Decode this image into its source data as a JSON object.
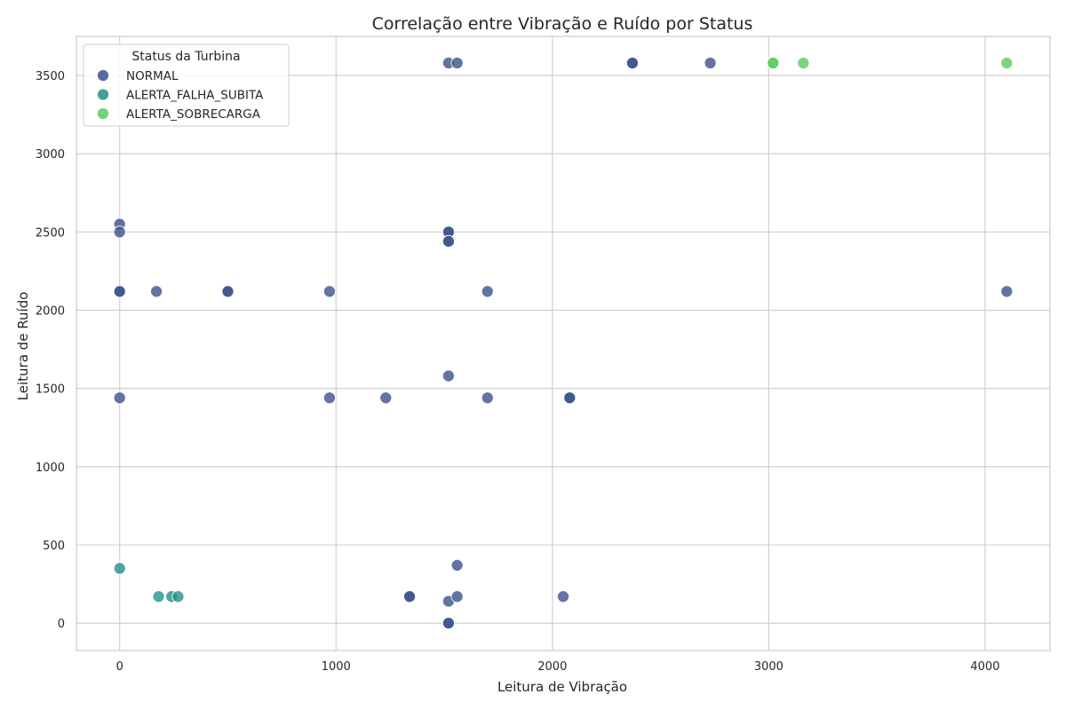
{
  "chart_data": {
    "type": "scatter",
    "title": "Correlação entre Vibração e Ruído por Status",
    "xlabel": "Leitura de Vibração",
    "ylabel": "Leitura de Ruído",
    "xlim": [
      -200,
      4300
    ],
    "ylim": [
      -175,
      3750
    ],
    "xticks": [
      0,
      1000,
      2000,
      3000,
      4000
    ],
    "yticks": [
      0,
      500,
      1000,
      1500,
      2000,
      2500,
      3000,
      3500
    ],
    "grid": true,
    "legend": {
      "title": "Status da Turbina",
      "placement": "top-left"
    },
    "series": [
      {
        "name": "NORMAL",
        "color": "#3b528b",
        "points": [
          [
            0,
            2550
          ],
          [
            0,
            2500
          ],
          [
            0,
            2120
          ],
          [
            0,
            2120
          ],
          [
            0,
            1440
          ],
          [
            170,
            2120
          ],
          [
            500,
            2120
          ],
          [
            500,
            2120
          ],
          [
            970,
            2120
          ],
          [
            970,
            1440
          ],
          [
            1230,
            1440
          ],
          [
            1340,
            170
          ],
          [
            1340,
            170
          ],
          [
            1520,
            3580
          ],
          [
            1560,
            3580
          ],
          [
            1520,
            2500
          ],
          [
            1520,
            2500
          ],
          [
            1520,
            2440
          ],
          [
            1520,
            2440
          ],
          [
            1520,
            1580
          ],
          [
            1520,
            140
          ],
          [
            1520,
            0
          ],
          [
            1520,
            0
          ],
          [
            1560,
            370
          ],
          [
            1560,
            170
          ],
          [
            1700,
            2120
          ],
          [
            1700,
            1440
          ],
          [
            2050,
            170
          ],
          [
            2080,
            1440
          ],
          [
            2080,
            1440
          ],
          [
            2370,
            3580
          ],
          [
            2370,
            3580
          ],
          [
            2730,
            3580
          ],
          [
            4100,
            2120
          ]
        ]
      },
      {
        "name": "ALERTA_FALHA_SUBITA",
        "color": "#21918c",
        "points": [
          [
            0,
            350
          ],
          [
            180,
            170
          ],
          [
            240,
            170
          ],
          [
            270,
            170
          ]
        ]
      },
      {
        "name": "ALERTA_SOBRECARGA",
        "color": "#5ec962",
        "points": [
          [
            3020,
            3580
          ],
          [
            3020,
            3580
          ],
          [
            3160,
            3580
          ],
          [
            4100,
            3580
          ]
        ]
      }
    ]
  }
}
